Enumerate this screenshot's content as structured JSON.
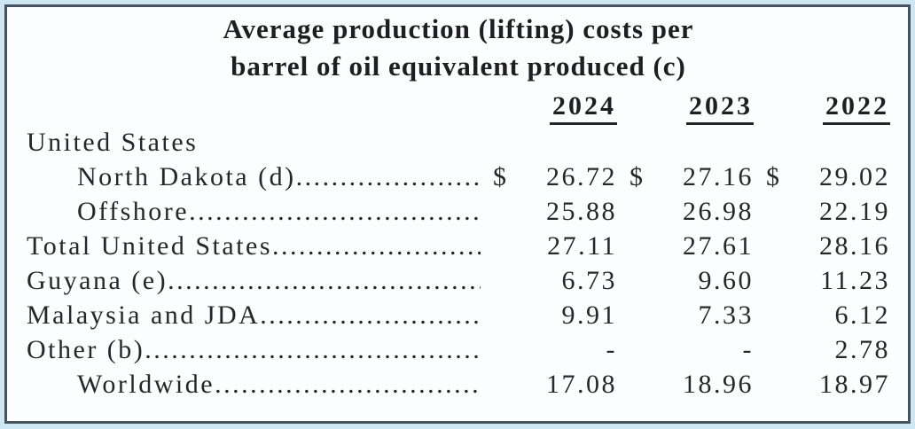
{
  "title": {
    "line1": "Average production (lifting) costs per",
    "line2": "barrel of oil equivalent produced (c)"
  },
  "currency_symbol": "$",
  "colors": {
    "page_background": "#cde7f3",
    "card_background": "#fcfdfe",
    "border": "#46525e",
    "text": "#272727"
  },
  "table": {
    "columns": [
      "2024",
      "2023",
      "2022"
    ],
    "rows": [
      {
        "label": "United States",
        "indent": 0,
        "dots": false,
        "currency": false,
        "values": [
          "",
          "",
          ""
        ]
      },
      {
        "label": "North Dakota (d)",
        "indent": 1,
        "dots": true,
        "currency": true,
        "values": [
          "26.72",
          "27.16",
          "29.02"
        ]
      },
      {
        "label": "Offshore",
        "indent": 1,
        "dots": true,
        "currency": false,
        "values": [
          "25.88",
          "26.98",
          "22.19"
        ]
      },
      {
        "label": "Total United States",
        "indent": 0,
        "dots": true,
        "currency": false,
        "values": [
          "27.11",
          "27.61",
          "28.16"
        ]
      },
      {
        "label": "Guyana (e)",
        "indent": 0,
        "dots": true,
        "currency": false,
        "values": [
          "6.73",
          "9.60",
          "11.23"
        ]
      },
      {
        "label": "Malaysia and JDA",
        "indent": 0,
        "dots": true,
        "currency": false,
        "values": [
          "9.91",
          "7.33",
          "6.12"
        ]
      },
      {
        "label": "Other (b)",
        "indent": 0,
        "dots": true,
        "currency": false,
        "values": [
          "-",
          "-",
          "2.78"
        ]
      },
      {
        "label": "Worldwide",
        "indent": 1,
        "dots": true,
        "currency": false,
        "values": [
          "17.08",
          "18.96",
          "18.97"
        ]
      }
    ]
  }
}
